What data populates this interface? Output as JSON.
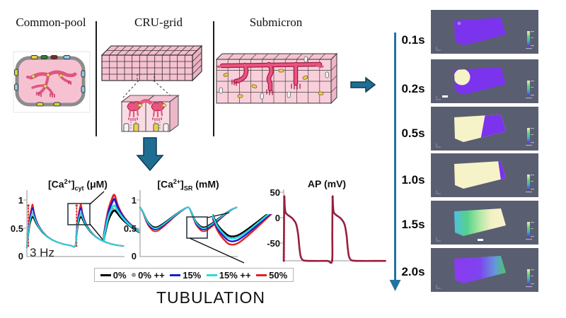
{
  "palette": {
    "arrow_teal": "#1f6e92",
    "sim_panel_bg": "#5a5e71",
    "voltage_purple": "#7c33ee",
    "voltage_cream": "#f7f3c8",
    "sr_red": "#e8557e",
    "cell_pink": "#f6c2d2",
    "membrane_gray": "#8c8c8c"
  },
  "model_panels": {
    "labels": [
      "Common-pool",
      "CRU-grid",
      "Submicron"
    ]
  },
  "charts_section": {
    "tubulation_label": "TUBULATION",
    "legend": {
      "items": [
        {
          "label": "0%",
          "color": "#000000",
          "marker": "line"
        },
        {
          "label": "0% ++",
          "color": "#999999",
          "marker": "dot"
        },
        {
          "label": "15%",
          "color": "#1c1ccd",
          "marker": "line"
        },
        {
          "label": "15% ++",
          "color": "#2bd9dc",
          "marker": "line"
        },
        {
          "label": "50%",
          "color": "#e02222",
          "marker": "line"
        }
      ]
    }
  },
  "chart_data": [
    {
      "id": "ca_cyt",
      "type": "line",
      "title": {
        "pre": "[Ca",
        "sup": "2+",
        "bracket": "]",
        "sub": "cyt",
        "unit": " (μM)"
      },
      "yticks": [
        "1",
        "0.5",
        "0"
      ],
      "ylim": [
        0,
        1
      ],
      "annotation": "3 Hz",
      "pacing_hz": 3,
      "period_s": 0.333,
      "beats": 2,
      "x_range_s": [
        0,
        0.667
      ],
      "series": [
        {
          "name": "0%",
          "color": "#000000",
          "style": "solid",
          "profile": [
            [
              0,
              0.16
            ],
            [
              0.008,
              0.34
            ],
            [
              0.02,
              0.56
            ],
            [
              0.032,
              0.67
            ],
            [
              0.04,
              0.7
            ],
            [
              0.05,
              0.66
            ],
            [
              0.065,
              0.58
            ],
            [
              0.085,
              0.5
            ],
            [
              0.11,
              0.42
            ],
            [
              0.145,
              0.34
            ],
            [
              0.19,
              0.275
            ],
            [
              0.245,
              0.225
            ],
            [
              0.3,
              0.195
            ],
            [
              0.333,
              0.185
            ]
          ]
        },
        {
          "name": "0% ++",
          "color": "#999999",
          "style": "dots",
          "profile": [
            [
              0,
              0.16
            ],
            [
              0.008,
              0.35
            ],
            [
              0.02,
              0.58
            ],
            [
              0.032,
              0.7
            ],
            [
              0.04,
              0.73
            ],
            [
              0.05,
              0.68
            ],
            [
              0.065,
              0.59
            ],
            [
              0.085,
              0.505
            ],
            [
              0.11,
              0.425
            ],
            [
              0.145,
              0.34
            ],
            [
              0.19,
              0.275
            ],
            [
              0.245,
              0.225
            ],
            [
              0.3,
              0.195
            ],
            [
              0.333,
              0.185
            ]
          ]
        },
        {
          "name": "15%",
          "color": "#1c1ccd",
          "style": "solid",
          "profile": [
            [
              0,
              0.16
            ],
            [
              0.008,
              0.39
            ],
            [
              0.02,
              0.66
            ],
            [
              0.032,
              0.81
            ],
            [
              0.04,
              0.86
            ],
            [
              0.05,
              0.75
            ],
            [
              0.065,
              0.63
            ],
            [
              0.085,
              0.525
            ],
            [
              0.11,
              0.435
            ],
            [
              0.145,
              0.345
            ],
            [
              0.19,
              0.275
            ],
            [
              0.245,
              0.225
            ],
            [
              0.3,
              0.195
            ],
            [
              0.333,
              0.185
            ]
          ]
        },
        {
          "name": "15% ++",
          "color": "#2bd9dc",
          "style": "solid",
          "profile": [
            [
              0,
              0.16
            ],
            [
              0.008,
              0.36
            ],
            [
              0.02,
              0.61
            ],
            [
              0.032,
              0.735
            ],
            [
              0.04,
              0.77
            ],
            [
              0.05,
              0.7
            ],
            [
              0.065,
              0.605
            ],
            [
              0.085,
              0.51
            ],
            [
              0.11,
              0.43
            ],
            [
              0.145,
              0.34
            ],
            [
              0.19,
              0.275
            ],
            [
              0.245,
              0.225
            ],
            [
              0.3,
              0.195
            ],
            [
              0.333,
              0.185
            ]
          ]
        },
        {
          "name": "50%",
          "color": "#e02222",
          "style": "solid",
          "profile": [
            [
              0,
              0.16
            ],
            [
              0.008,
              0.41
            ],
            [
              0.02,
              0.7
            ],
            [
              0.032,
              0.865
            ],
            [
              0.04,
              0.92
            ],
            [
              0.05,
              0.78
            ],
            [
              0.065,
              0.645
            ],
            [
              0.085,
              0.53
            ],
            [
              0.11,
              0.44
            ],
            [
              0.145,
              0.345
            ],
            [
              0.19,
              0.275
            ],
            [
              0.245,
              0.225
            ],
            [
              0.3,
              0.195
            ],
            [
              0.333,
              0.185
            ]
          ]
        }
      ],
      "draw_order": [
        1,
        0,
        4,
        2,
        3
      ],
      "spikes": {
        "t": [
          0.01,
          0.343
        ],
        "v": [
          0.18,
          0.9
        ],
        "color": "#e02222"
      },
      "zoom_inset": {
        "window_t": [
          0.335,
          0.455
        ],
        "window_v": [
          0.26,
          1.0
        ]
      }
    },
    {
      "id": "ca_sr",
      "type": "line",
      "title": {
        "pre": "[Ca",
        "sup": "2+",
        "bracket": "]",
        "sub": "SR",
        "unit": " (mM)"
      },
      "yticks": [
        "1",
        "0.5",
        "0"
      ],
      "ylim": [
        0,
        1
      ],
      "period_s": 0.333,
      "beats": 2,
      "x_range_s": [
        0,
        0.667
      ],
      "series": [
        {
          "name": "0%",
          "color": "#000000",
          "style": "solid",
          "profile": [
            [
              0,
              0.87
            ],
            [
              0.02,
              0.79
            ],
            [
              0.05,
              0.628
            ],
            [
              0.08,
              0.545
            ],
            [
              0.1,
              0.52
            ],
            [
              0.125,
              0.53
            ],
            [
              0.16,
              0.585
            ],
            [
              0.2,
              0.66
            ],
            [
              0.25,
              0.754
            ],
            [
              0.3,
              0.835
            ],
            [
              0.333,
              0.87
            ]
          ]
        },
        {
          "name": "0% ++",
          "color": "#999999",
          "style": "dots",
          "profile": [
            [
              0,
              0.87
            ],
            [
              0.02,
              0.787
            ],
            [
              0.05,
              0.622
            ],
            [
              0.08,
              0.535
            ],
            [
              0.1,
              0.51
            ],
            [
              0.125,
              0.52
            ],
            [
              0.16,
              0.577
            ],
            [
              0.2,
              0.654
            ],
            [
              0.25,
              0.751
            ],
            [
              0.3,
              0.834
            ],
            [
              0.333,
              0.87
            ]
          ]
        },
        {
          "name": "15%",
          "color": "#1c1ccd",
          "style": "solid",
          "profile": [
            [
              0,
              0.87
            ],
            [
              0.02,
              0.779
            ],
            [
              0.05,
              0.597
            ],
            [
              0.08,
              0.503
            ],
            [
              0.1,
              0.475
            ],
            [
              0.125,
              0.487
            ],
            [
              0.16,
              0.548
            ],
            [
              0.2,
              0.633
            ],
            [
              0.25,
              0.74
            ],
            [
              0.3,
              0.83
            ],
            [
              0.333,
              0.87
            ]
          ]
        },
        {
          "name": "15% ++",
          "color": "#2bd9dc",
          "style": "solid",
          "profile": [
            [
              0,
              0.87
            ],
            [
              0.02,
              0.785
            ],
            [
              0.05,
              0.615
            ],
            [
              0.08,
              0.526
            ],
            [
              0.1,
              0.5
            ],
            [
              0.125,
              0.511
            ],
            [
              0.16,
              0.568
            ],
            [
              0.2,
              0.648
            ],
            [
              0.25,
              0.748
            ],
            [
              0.3,
              0.833
            ],
            [
              0.333,
              0.87
            ]
          ]
        },
        {
          "name": "50%",
          "color": "#e02222",
          "style": "solid",
          "profile": [
            [
              0,
              0.87
            ],
            [
              0.02,
              0.772
            ],
            [
              0.05,
              0.577
            ],
            [
              0.08,
              0.475
            ],
            [
              0.1,
              0.445
            ],
            [
              0.125,
              0.458
            ],
            [
              0.16,
              0.524
            ],
            [
              0.2,
              0.615
            ],
            [
              0.25,
              0.73
            ],
            [
              0.3,
              0.827
            ],
            [
              0.333,
              0.87
            ]
          ]
        }
      ],
      "draw_order": [
        1,
        0,
        4,
        2,
        3
      ],
      "zoom_inset": {
        "window_t": [
          0.365,
          0.6
        ],
        "window_v": [
          0.28,
          0.72
        ]
      }
    },
    {
      "id": "ap",
      "type": "line",
      "title": {
        "pre": "AP (mV)",
        "sup": "",
        "bracket": "",
        "sub": "",
        "unit": ""
      },
      "yticks": [
        "50",
        "0",
        "-50"
      ],
      "ylim": [
        -90,
        50
      ],
      "period_s": 0.333,
      "beats": 2,
      "x_range_s": [
        0,
        0.7
      ],
      "tail": [
        0.7,
        -85
      ],
      "series": [
        {
          "name": "AP",
          "color": "#96203f",
          "style": "solid",
          "width": 2.6,
          "profile": [
            [
              0,
              -85
            ],
            [
              0.002,
              -30
            ],
            [
              0.004,
              40
            ],
            [
              0.007,
              24
            ],
            [
              0.012,
              11
            ],
            [
              0.025,
              6
            ],
            [
              0.045,
              2
            ],
            [
              0.065,
              -3
            ],
            [
              0.08,
              -9
            ],
            [
              0.09,
              -17
            ],
            [
              0.1,
              -34
            ],
            [
              0.108,
              -58
            ],
            [
              0.116,
              -75
            ],
            [
              0.127,
              -82
            ],
            [
              0.145,
              -84.5
            ],
            [
              0.2,
              -85
            ],
            [
              0.3,
              -85
            ],
            [
              0.333,
              -85
            ]
          ]
        }
      ],
      "draw_order": [
        0
      ],
      "spikes": {
        "t": [
          0.004,
          0.337
        ],
        "v": [
          -85,
          40
        ],
        "color": "#e02222"
      }
    }
  ],
  "timeline": {
    "frames": [
      {
        "time": "0.1s",
        "state": "uniform purple, small activation spot upper-left"
      },
      {
        "time": "0.2s",
        "state": "purple with cream activation blob at left"
      },
      {
        "time": "0.5s",
        "state": "cream left two-thirds, purple right"
      },
      {
        "time": "1.0s",
        "state": "fully cream, purple sliver at right edge"
      },
      {
        "time": "1.5s",
        "state": "cyan-green left grading to cream right"
      },
      {
        "time": "2.0s",
        "state": "purple left grading to green right"
      }
    ]
  }
}
